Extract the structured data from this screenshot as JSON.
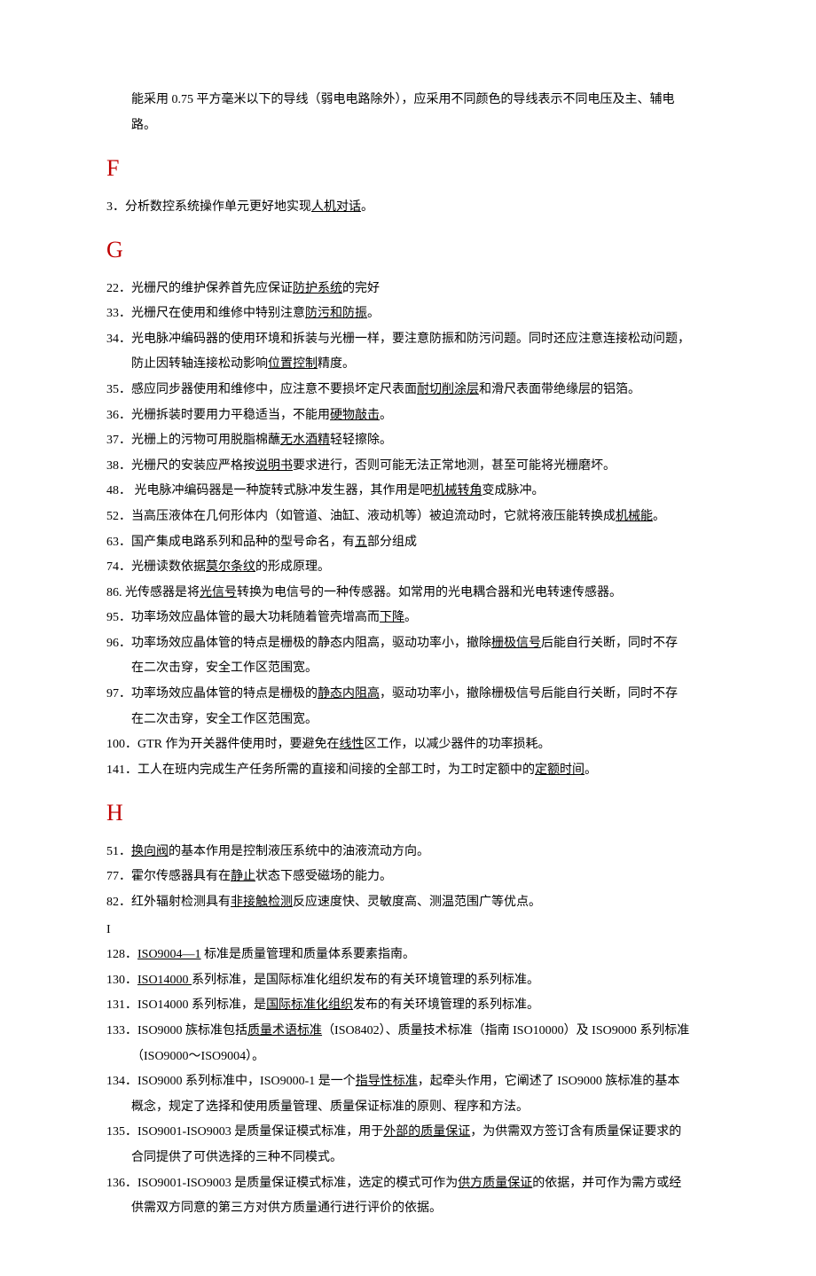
{
  "colors": {
    "heading": "#c00000",
    "text": "#000000",
    "background": "#ffffff"
  },
  "intro": {
    "line1_a": "能采用 0.75 平方毫米以下的导线（弱电电路除外），应采用不同颜色的导线表示不同电压及主、辅电",
    "line1_b": "路。"
  },
  "sections": {
    "F": {
      "letter": "F",
      "items": [
        {
          "num": "3．",
          "pre": "分析数控系统操作单元更好地实现",
          "u": "人机对话",
          "post": "。"
        }
      ]
    },
    "G": {
      "letter": "G",
      "items": [
        {
          "num": "22．",
          "pre": "光栅尺的维护保养首先应保证",
          "u": "防护系统",
          "post": "的完好"
        },
        {
          "num": "33．",
          "pre": "光栅尺在使用和维修中特别注意",
          "u": "防污和防振",
          "post": "。"
        },
        {
          "num": "34．",
          "pre": "光电脉冲编码器的使用环境和拆装与光栅一样，要注意防振和防污问题。同时还应注意连接松动问题，",
          "cont": "防止因转轴连接松动影响",
          "u": "位置控制",
          "post": "精度。"
        },
        {
          "num": "35．",
          "pre": "感应同步器使用和维修中，应注意不要损坏定尺表面",
          "u": "耐切削涂层",
          "post": "和滑尺表面带绝缘层的铝箔。"
        },
        {
          "num": "36．",
          "pre": "光栅拆装时要用力平稳适当，不能用",
          "u": "硬物敲击",
          "post": "。"
        },
        {
          "num": "37．",
          "pre": "光栅上的污物可用脱脂棉蘸",
          "u": "无水酒精",
          "post": "轻轻擦除。"
        },
        {
          "num": "38．",
          "pre": "光栅尺的安装应严格按",
          "u": "说明书",
          "post": "要求进行，否则可能无法正常地测，甚至可能将光栅磨坏。"
        },
        {
          "num": "48．",
          "pre": " 光电脉冲编码器是一种旋转式脉冲发生器，其作用是吧",
          "u": "机械转角",
          "post": "变成脉冲。"
        },
        {
          "num": "52．",
          "pre": "当高压液体在几何形体内（如管道、油缸、液动机等）被迫流动时，它就将液压能转换成",
          "u": "机械能",
          "post": "。"
        },
        {
          "num": "63．",
          "pre": "国产集成电路系列和品种的型号命名，有",
          "u": "五",
          "post": "部分组成"
        },
        {
          "num": "74．",
          "pre": "光栅读数依据",
          "u": "莫尔条纹",
          "post": "的形成原理。"
        },
        {
          "num": "86.",
          "pre": " 光传感器是将",
          "u": "光信号",
          "post": "转换为电信号的一种传感器。如常用的光电耦合器和光电转速传感器。"
        },
        {
          "num": "95．",
          "pre": "功率场效应晶体管的最大功耗随着管壳增高而",
          "u": "下降",
          "post": "。"
        },
        {
          "num": "96．",
          "pre": "功率场效应晶体管的特点是栅极的静态内阻高，驱动功率小，撤除",
          "u": "栅极信号",
          "post": "后能自行关断，同时不存",
          "cont2": "在二次击穿，安全工作区范围宽。"
        },
        {
          "num": "97．",
          "pre": "功率场效应晶体管的特点是栅极的",
          "u": "静态内阻高",
          "post": "，驱动功率小，撤除栅极信号后能自行关断，同时不存",
          "cont2": "在二次击穿，安全工作区范围宽。"
        },
        {
          "num": "100．",
          "pre": "GTR 作为开关器件使用时，要避免在",
          "u": "线性",
          "post": "区工作，以减少器件的功率损耗。"
        },
        {
          "num": "141．",
          "pre": "工人在班内完成生产任务所需的直接和间接的全部工时，为工时定额中的",
          "u": "定额时间",
          "post": "。"
        }
      ]
    },
    "H": {
      "letter": "H",
      "items": [
        {
          "num": "51．",
          "u0": "换向阀",
          "post0": "的基本作用是控制液压系统中的油液流动方向。"
        },
        {
          "num": "77．",
          "pre": "霍尔传感器具有在",
          "u": "静止",
          "post": "状态下感受磁场的能力。"
        },
        {
          "num": "82．",
          "pre": "红外辐射检测具有",
          "u": "非接触检测",
          "post": "反应速度快、灵敏度高、测温范围广等优点。"
        }
      ],
      "plain": "I",
      "iitems": [
        {
          "num": "128．",
          "u0": "ISO9004—1",
          "post0": " 标准是质量管理和质量体系要素指南。"
        },
        {
          "num": "130．",
          "u0": "ISO14000 ",
          "post0": "系列标准，是国际标准化组织发布的有关环境管理的系列标准。"
        },
        {
          "num": "131．",
          "pre": "ISO14000 系列标准，是",
          "u": "国际标准化组织",
          "post": "发布的有关环境管理的系列标准。"
        },
        {
          "num": "133．",
          "pre": "ISO9000 族标准包括",
          "u": "质量术语标准",
          "post": "（ISO8402）、质量技术标准（指南 ISO10000）及 ISO9000 系列标准",
          "cont2": "（ISO9000～ISO9004）。"
        },
        {
          "num": "134．",
          "pre": "ISO9000 系列标准中，ISO9000-1 是一个",
          "u": "指导性标准",
          "post": "，起牵头作用，它阐述了 ISO9000 族标准的基本",
          "cont2": "概念，规定了选择和使用质量管理、质量保证标准的原则、程序和方法。"
        },
        {
          "num": "135．",
          "pre": "ISO9001-ISO9003 是质量保证模式标准，用于",
          "u": "外部的质量保证",
          "post": "，为供需双方签订含有质量保证要求的",
          "cont2": "合同提供了可供选择的三种不同模式。"
        },
        {
          "num": "136．",
          "pre": "ISO9001-ISO9003 是质量保证模式标准，选定的模式可作为",
          "u": "供方质量保证",
          "post": "的依据，并可作为需方或经",
          "cont2": "供需双方同意的第三方对供方质量通行进行评价的依据。"
        }
      ]
    }
  }
}
